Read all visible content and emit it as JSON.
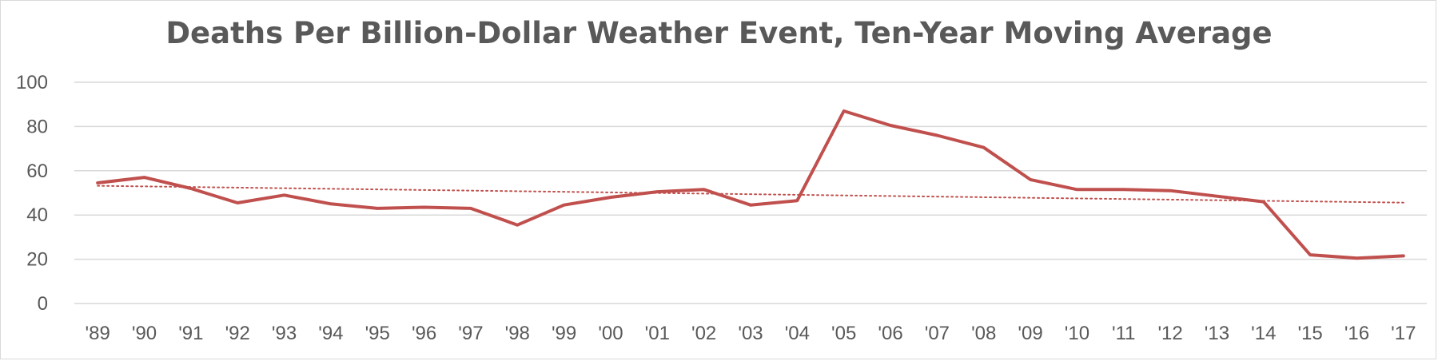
{
  "chart_data": {
    "type": "line",
    "title": "Deaths Per Billion-Dollar Weather Event, Ten-Year Moving Average",
    "xlabel": "",
    "ylabel": "",
    "categories": [
      "'89",
      "'90",
      "'91",
      "'92",
      "'93",
      "'94",
      "'95",
      "'96",
      "'97",
      "'98",
      "'99",
      "'00",
      "'01",
      "'02",
      "'03",
      "'04",
      "'05",
      "'06",
      "'07",
      "'08",
      "'09",
      "'10",
      "'11",
      "'12",
      "'13",
      "'14",
      "'15",
      "'16",
      "'17"
    ],
    "series": [
      {
        "values": [
          54.5,
          57,
          52,
          45.5,
          49,
          45,
          43,
          43.5,
          43,
          35.5,
          44.5,
          48,
          50.5,
          51.5,
          44.5,
          46.5,
          87,
          80.5,
          76,
          70.5,
          56,
          51.5,
          51.5,
          51,
          48.5,
          46,
          22,
          20.5,
          21.5
        ],
        "color": "#c0504d"
      }
    ],
    "trendline": {
      "type": "linear",
      "style": "dotted",
      "color": "#c0504d",
      "start": 53.2,
      "end": 45.6
    },
    "ylim": [
      0,
      100
    ],
    "yticks": [
      0,
      20,
      40,
      60,
      80,
      100
    ],
    "grid": true,
    "legend": "none",
    "gridline_color": "#d9d9d9"
  }
}
